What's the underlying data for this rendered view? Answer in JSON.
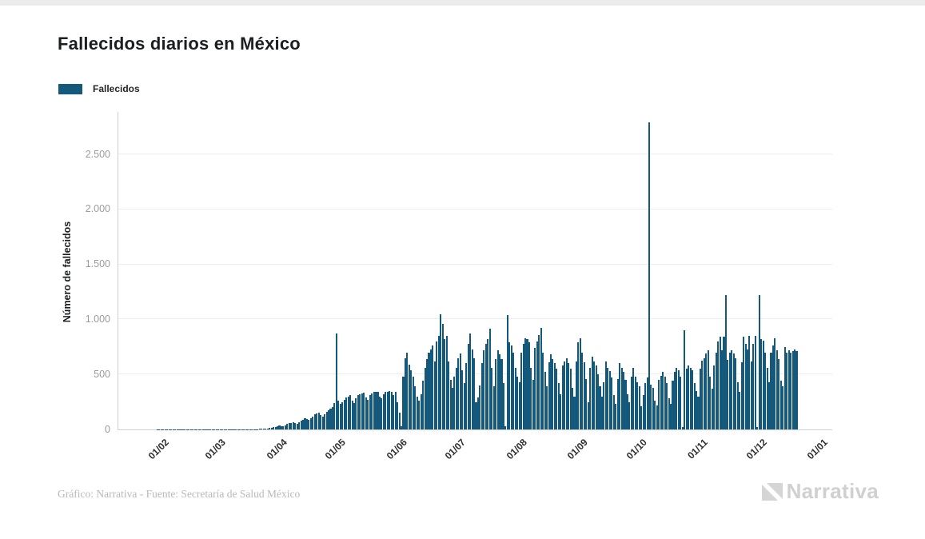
{
  "chart": {
    "title": "Fallecidos diarios en México",
    "legend": {
      "label": "Fallecidos",
      "swatch_color": "#14587c"
    },
    "y_axis_title": "Número de fallecidos",
    "footer_credit": "Gráfico: Narrativa - Fuente: Secretaría de Salud México",
    "brand": {
      "name": "Narrativa"
    },
    "colors": {
      "bar": "#14587c",
      "gridline": "#ededed",
      "axis_line": "#cfcfcf",
      "y_tick_text": "#9b9b9b",
      "x_tick_text": "#2d2d2d",
      "title_text": "#1c1f22",
      "footer_text": "#b9b9b9",
      "brand_text": "#d0d0d0"
    }
  },
  "chart_data": {
    "type": "bar",
    "title": "Fallecidos diarios en México",
    "xlabel": "",
    "ylabel": "Número de fallecidos",
    "grid": true,
    "legend_position": "top-left",
    "ylim": [
      0,
      2885
    ],
    "x_start_date": "2020-02-01",
    "x_unit": "day",
    "y_ticks": [
      {
        "value": 0,
        "label": "0"
      },
      {
        "value": 500,
        "label": "500"
      },
      {
        "value": 1000,
        "label": "1.000"
      },
      {
        "value": 1500,
        "label": "1.500"
      },
      {
        "value": 2000,
        "label": "2.000"
      },
      {
        "value": 2500,
        "label": "2.500"
      }
    ],
    "x_ticks": [
      {
        "day": 0,
        "label": "01/02"
      },
      {
        "day": 29,
        "label": "01/03"
      },
      {
        "day": 60,
        "label": "01/04"
      },
      {
        "day": 90,
        "label": "01/05"
      },
      {
        "day": 121,
        "label": "01/06"
      },
      {
        "day": 151,
        "label": "01/07"
      },
      {
        "day": 182,
        "label": "01/08"
      },
      {
        "day": 213,
        "label": "01/09"
      },
      {
        "day": 243,
        "label": "01/10"
      },
      {
        "day": 274,
        "label": "01/11"
      },
      {
        "day": 304,
        "label": "01/12"
      },
      {
        "day": 335,
        "label": "01/01"
      }
    ],
    "series": [
      {
        "name": "Fallecidos",
        "color": "#14587c",
        "values": [
          2,
          2,
          2,
          2,
          2,
          2,
          2,
          2,
          2,
          2,
          2,
          2,
          2,
          2,
          2,
          2,
          2,
          2,
          2,
          2,
          2,
          2,
          2,
          2,
          2,
          2,
          2,
          2,
          2,
          2,
          2,
          2,
          2,
          2,
          2,
          2,
          2,
          2,
          2,
          2,
          2,
          2,
          2,
          2,
          2,
          2,
          2,
          1,
          2,
          1,
          2,
          3,
          4,
          4,
          5,
          6,
          8,
          12,
          16,
          20,
          22,
          28,
          35,
          30,
          26,
          40,
          48,
          55,
          60,
          68,
          60,
          52,
          65,
          78,
          90,
          100,
          92,
          85,
          105,
          120,
          135,
          145,
          152,
          130,
          118,
          140,
          160,
          175,
          190,
          205,
          240,
          870,
          260,
          230,
          250,
          270,
          290,
          300,
          310,
          260,
          240,
          280,
          310,
          320,
          330,
          335,
          290,
          270,
          310,
          330,
          340,
          345,
          340,
          300,
          280,
          320,
          340,
          345,
          350,
          340,
          310,
          340,
          250,
          150,
          30,
          480,
          650,
          700,
          590,
          540,
          480,
          390,
          300,
          260,
          320,
          440,
          560,
          640,
          700,
          730,
          760,
          620,
          800,
          850,
          1050,
          960,
          820,
          850,
          620,
          450,
          380,
          480,
          560,
          650,
          690,
          540,
          420,
          600,
          780,
          870,
          730,
          650,
          250,
          290,
          400,
          600,
          720,
          780,
          820,
          915,
          560,
          390,
          640,
          720,
          680,
          640,
          420,
          30,
          1040,
          790,
          760,
          700,
          560,
          480,
          430,
          700,
          780,
          830,
          820,
          790,
          560,
          450,
          740,
          800,
          860,
          920,
          700,
          520,
          390,
          610,
          680,
          640,
          600,
          550,
          420,
          320,
          580,
          620,
          650,
          600,
          550,
          380,
          300,
          620,
          790,
          830,
          700,
          610,
          460,
          250,
          560,
          660,
          620,
          580,
          500,
          390,
          300,
          430,
          620,
          560,
          530,
          470,
          310,
          230,
          460,
          600,
          560,
          520,
          450,
          320,
          250,
          480,
          560,
          480,
          430,
          390,
          210,
          310,
          420,
          470,
          2789,
          410,
          380,
          260,
          220,
          450,
          490,
          520,
          480,
          420,
          280,
          230,
          440,
          520,
          560,
          540,
          480,
          20,
          900,
          550,
          580,
          560,
          540,
          420,
          350,
          300,
          550,
          625,
          650,
          690,
          720,
          480,
          370,
          580,
          700,
          800,
          840,
          720,
          840,
          1220,
          630,
          700,
          720,
          690,
          650,
          430,
          340,
          610,
          840,
          780,
          730,
          850,
          620,
          780,
          850,
          20,
          1220,
          820,
          810,
          700,
          560,
          430,
          700,
          760,
          830,
          720,
          640,
          440,
          390,
          750,
          700,
          720,
          700,
          710,
          730,
          710
        ]
      }
    ]
  }
}
